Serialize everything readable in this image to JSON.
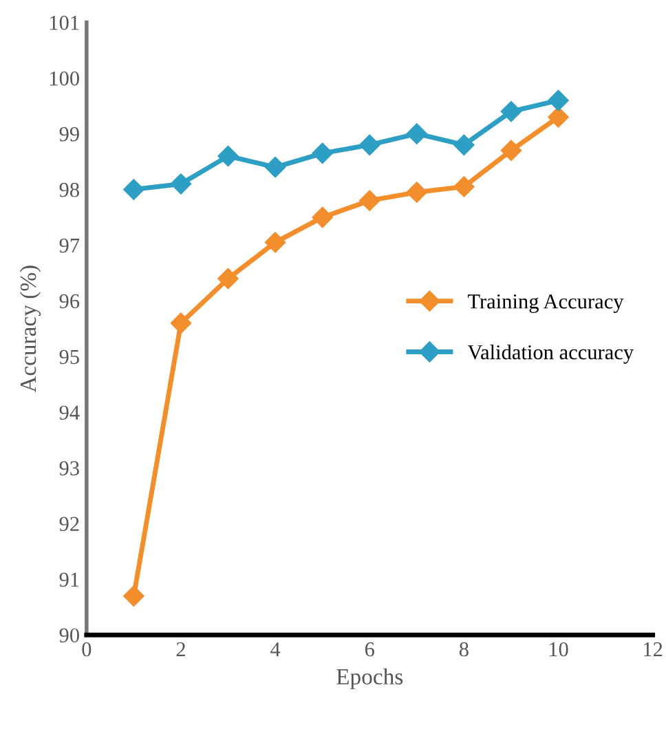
{
  "chart_data": {
    "type": "line",
    "xlabel": "Epochs",
    "ylabel": "Accuracy (%)",
    "x": [
      1,
      2,
      3,
      4,
      5,
      6,
      7,
      8,
      9,
      10
    ],
    "series": [
      {
        "name": "Training Accuracy",
        "color": "#f28e2b",
        "values": [
          90.7,
          95.6,
          96.4,
          97.05,
          97.5,
          97.8,
          97.95,
          98.05,
          98.7,
          99.3
        ]
      },
      {
        "name": "Validation accuracy",
        "color": "#2e9fc4",
        "values": [
          98.0,
          98.1,
          98.6,
          98.4,
          98.65,
          98.8,
          99.0,
          98.8,
          99.4,
          99.6
        ]
      }
    ],
    "xlim": [
      0,
      12
    ],
    "xticks": [
      0,
      2,
      4,
      6,
      8,
      10,
      12
    ],
    "ylim": [
      90,
      101
    ],
    "yticks": [
      90,
      91,
      92,
      93,
      94,
      95,
      96,
      97,
      98,
      99,
      100,
      101
    ],
    "grid": false,
    "legend": "right",
    "marker": "diamond",
    "line_style": "solid"
  }
}
